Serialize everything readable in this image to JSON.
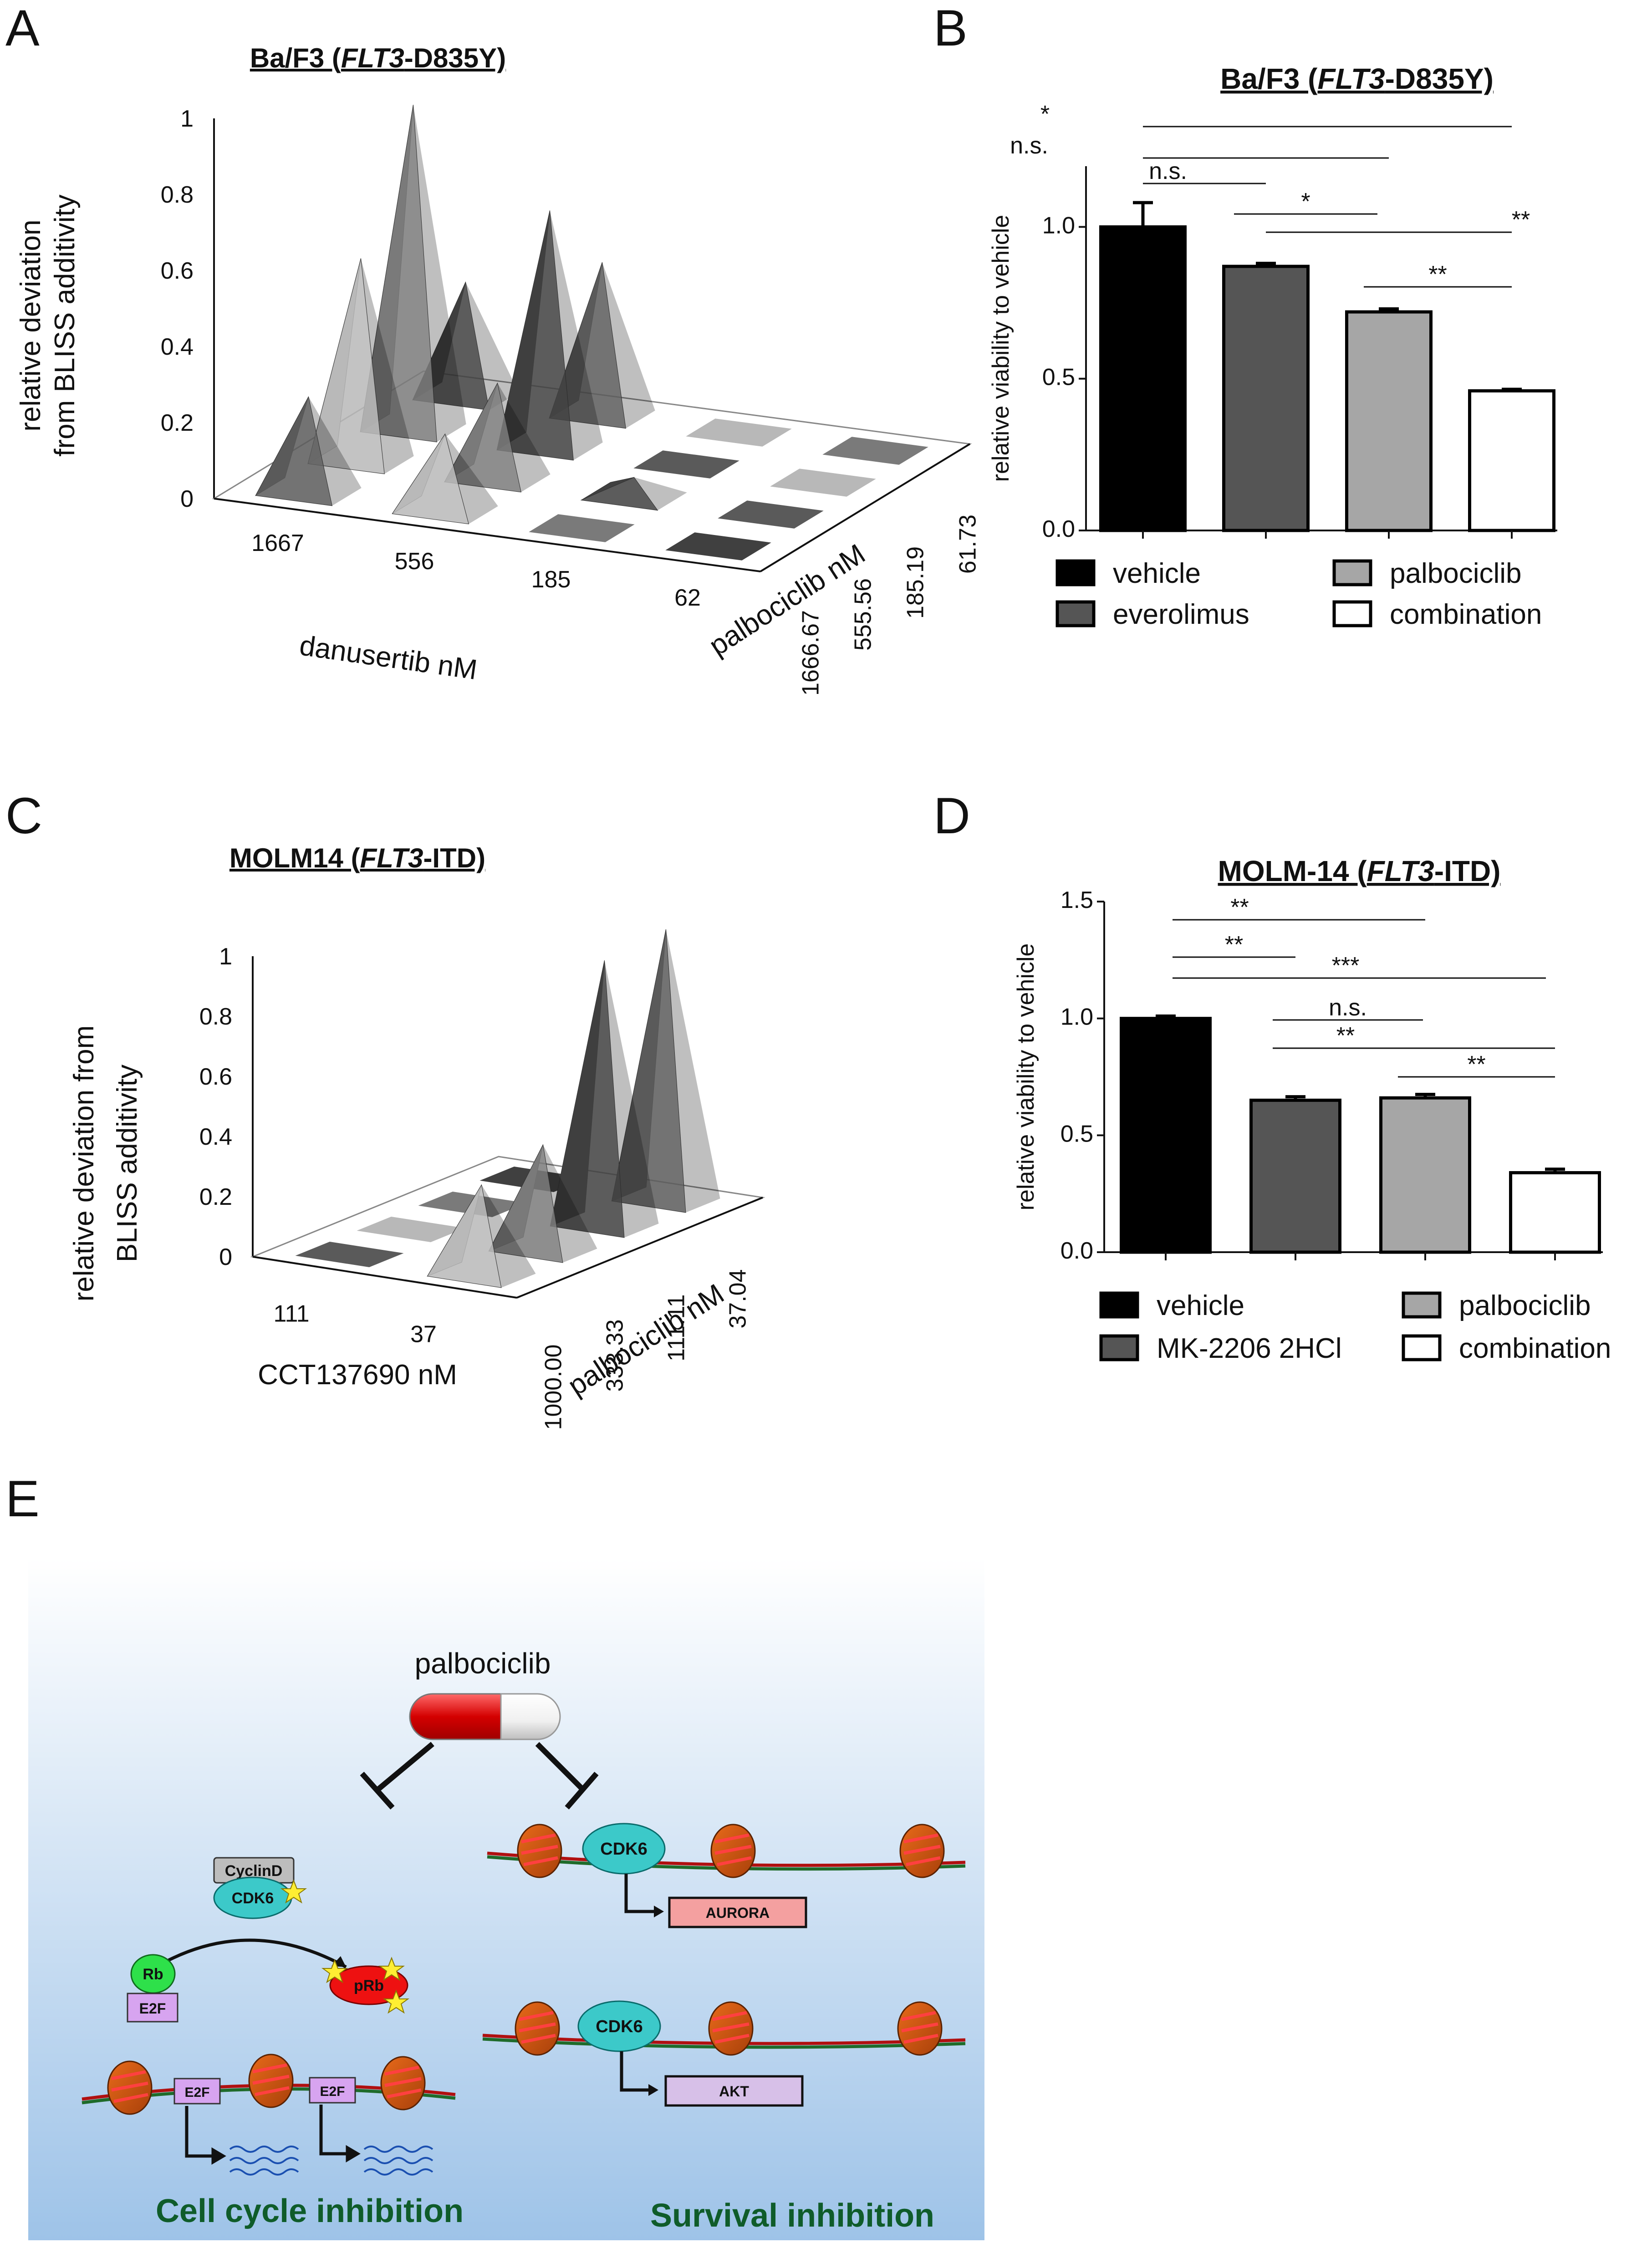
{
  "panels": {
    "A": {
      "letter": "A"
    },
    "B": {
      "letter": "B"
    },
    "C": {
      "letter": "C"
    },
    "D": {
      "letter": "D"
    },
    "E": {
      "letter": "E"
    }
  },
  "chart_data": [
    {
      "id": "A",
      "type": "bar3d",
      "title_prefix": "Ba/F3 (",
      "title_italic": "FLT3",
      "title_suffix": "-D835Y)",
      "zlabel_line1": "relative deviation",
      "zlabel_line2": "from BLISS additivity",
      "xlabel": "danusertib nM",
      "ylabel": "palbociclib  nM",
      "zticks": [
        "0",
        "0.2",
        "0.4",
        "0.6",
        "0.8",
        "1"
      ],
      "zlim": [
        0,
        1
      ],
      "x_categories": [
        "1667",
        "556",
        "185",
        "62"
      ],
      "y_categories": [
        "1666.67",
        "555.56",
        "185.19",
        "61.73"
      ],
      "values": [
        [
          0.25,
          0.53,
          0.85,
          0.3
        ],
        [
          0.2,
          0.25,
          0.62,
          0.4
        ],
        [
          0.0,
          0.05,
          0.0,
          0.0
        ],
        [
          0.0,
          0.0,
          0.0,
          0.0
        ]
      ]
    },
    {
      "id": "B",
      "type": "bar",
      "title_prefix": "Ba/F3 (",
      "title_italic": "FLT3",
      "title_suffix": "-D835Y)",
      "ylabel": "relative viability to vehicle",
      "ylim": [
        0,
        1.2
      ],
      "yticks": [
        "0.0",
        "0.5",
        "1.0"
      ],
      "categories": [
        "vehicle",
        "everolimus",
        "palbociclib",
        "combination"
      ],
      "values": [
        1.0,
        0.87,
        0.72,
        0.46
      ],
      "errors": [
        0.08,
        0.01,
        0.01,
        0.005
      ],
      "colors": [
        "#000000",
        "#555555",
        "#a6a6a6",
        "#ffffff"
      ],
      "significance": [
        {
          "from": 0,
          "to": 3,
          "label": "*"
        },
        {
          "from": 0,
          "to": 2,
          "label": "n.s."
        },
        {
          "from": 0,
          "to": 1,
          "label": "n.s."
        },
        {
          "from": 1,
          "to": 2,
          "label": "*"
        },
        {
          "from": 1,
          "to": 3,
          "label": "**"
        },
        {
          "from": 2,
          "to": 3,
          "label": "**"
        }
      ]
    },
    {
      "id": "C",
      "type": "bar3d",
      "title_prefix": "MOLM14 (",
      "title_italic": "FLT3",
      "title_suffix": "-ITD)",
      "zlabel_line1": "relative deviation  from",
      "zlabel_line2": "BLISS additivity",
      "xlabel": "CCT137690 nM",
      "ylabel": "palbociclib  nM",
      "zticks": [
        "0",
        "0.2",
        "0.4",
        "0.6",
        "0.8",
        "1"
      ],
      "zlim": [
        0,
        1
      ],
      "x_categories": [
        "111",
        "37"
      ],
      "y_categories": [
        "1000.00",
        "333.33",
        "111.11",
        "37.04"
      ],
      "values": [
        [
          0.0,
          0.0,
          0.0,
          0.0
        ],
        [
          0.3,
          0.35,
          0.88,
          0.9
        ]
      ]
    },
    {
      "id": "D",
      "type": "bar",
      "title_prefix": "MOLM-14 (",
      "title_italic": "FLT3",
      "title_suffix": "-ITD)",
      "ylabel": "relative viability to vehicle",
      "ylim": [
        0,
        1.5
      ],
      "yticks": [
        "0.0",
        "0.5",
        "1.0",
        "1.5"
      ],
      "categories": [
        "vehicle",
        "MK-2206 2HCl",
        "palbociclib",
        "combination"
      ],
      "values": [
        1.0,
        0.65,
        0.66,
        0.34
      ],
      "errors": [
        0.01,
        0.015,
        0.015,
        0.015
      ],
      "colors": [
        "#000000",
        "#555555",
        "#a6a6a6",
        "#ffffff"
      ],
      "significance": [
        {
          "from": 0,
          "to": 2,
          "label": "**"
        },
        {
          "from": 0,
          "to": 1,
          "label": "**"
        },
        {
          "from": 0,
          "to": 3,
          "label": "***"
        },
        {
          "from": 1,
          "to": 2,
          "label": "n.s."
        },
        {
          "from": 1,
          "to": 3,
          "label": "**"
        },
        {
          "from": 2,
          "to": 3,
          "label": "**"
        }
      ]
    }
  ],
  "diagram": {
    "drug": "palbociclib",
    "cyclind": "CyclinD",
    "cdk6": "CDK6",
    "rb": "Rb",
    "prb": "pRb",
    "e2f": "E2F",
    "aurora": "AURORA",
    "akt": "AKT",
    "left_caption": "Cell cycle inhibition",
    "right_caption": "Survival inhibition"
  }
}
